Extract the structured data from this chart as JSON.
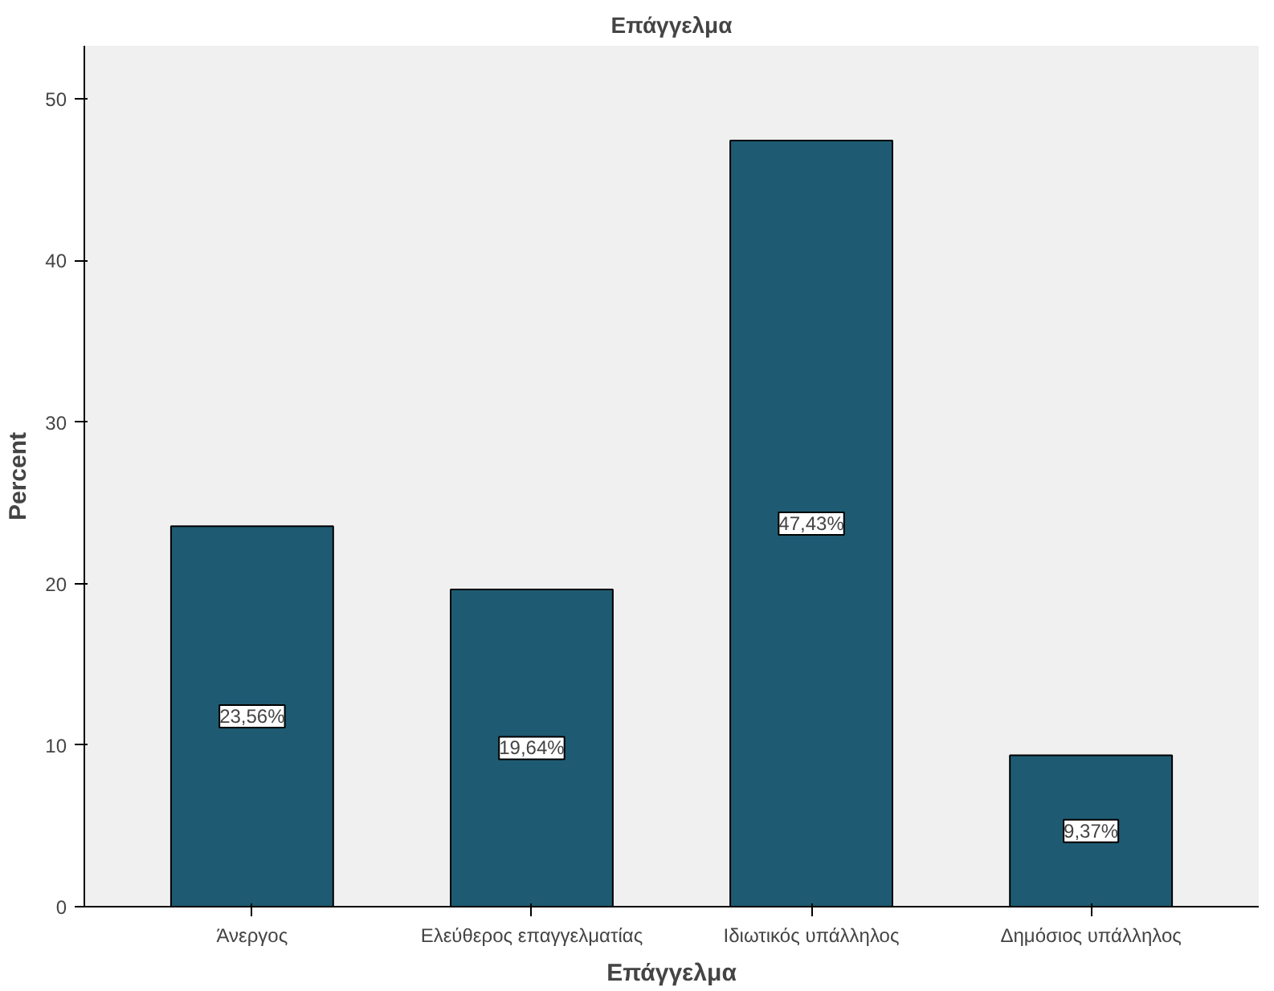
{
  "chart_data": {
    "type": "bar",
    "title": "Επάγγελμα",
    "xlabel": "Επάγγελμα",
    "ylabel": "Percent",
    "categories": [
      "Άνεργος",
      "Ελεύθερος επαγγελματίας",
      "Ιδιωτικός υπάλληλος",
      "Δημόσιος υπάλληλος"
    ],
    "values": [
      23.56,
      19.64,
      47.43,
      9.37
    ],
    "value_labels": [
      "23,56%",
      "19,64%",
      "47,43%",
      "9,37%"
    ],
    "color": "#1e5b72",
    "ylim": [
      0,
      53.3
    ],
    "yticks": [
      0,
      10,
      20,
      30,
      40,
      50
    ],
    "grid": false
  }
}
